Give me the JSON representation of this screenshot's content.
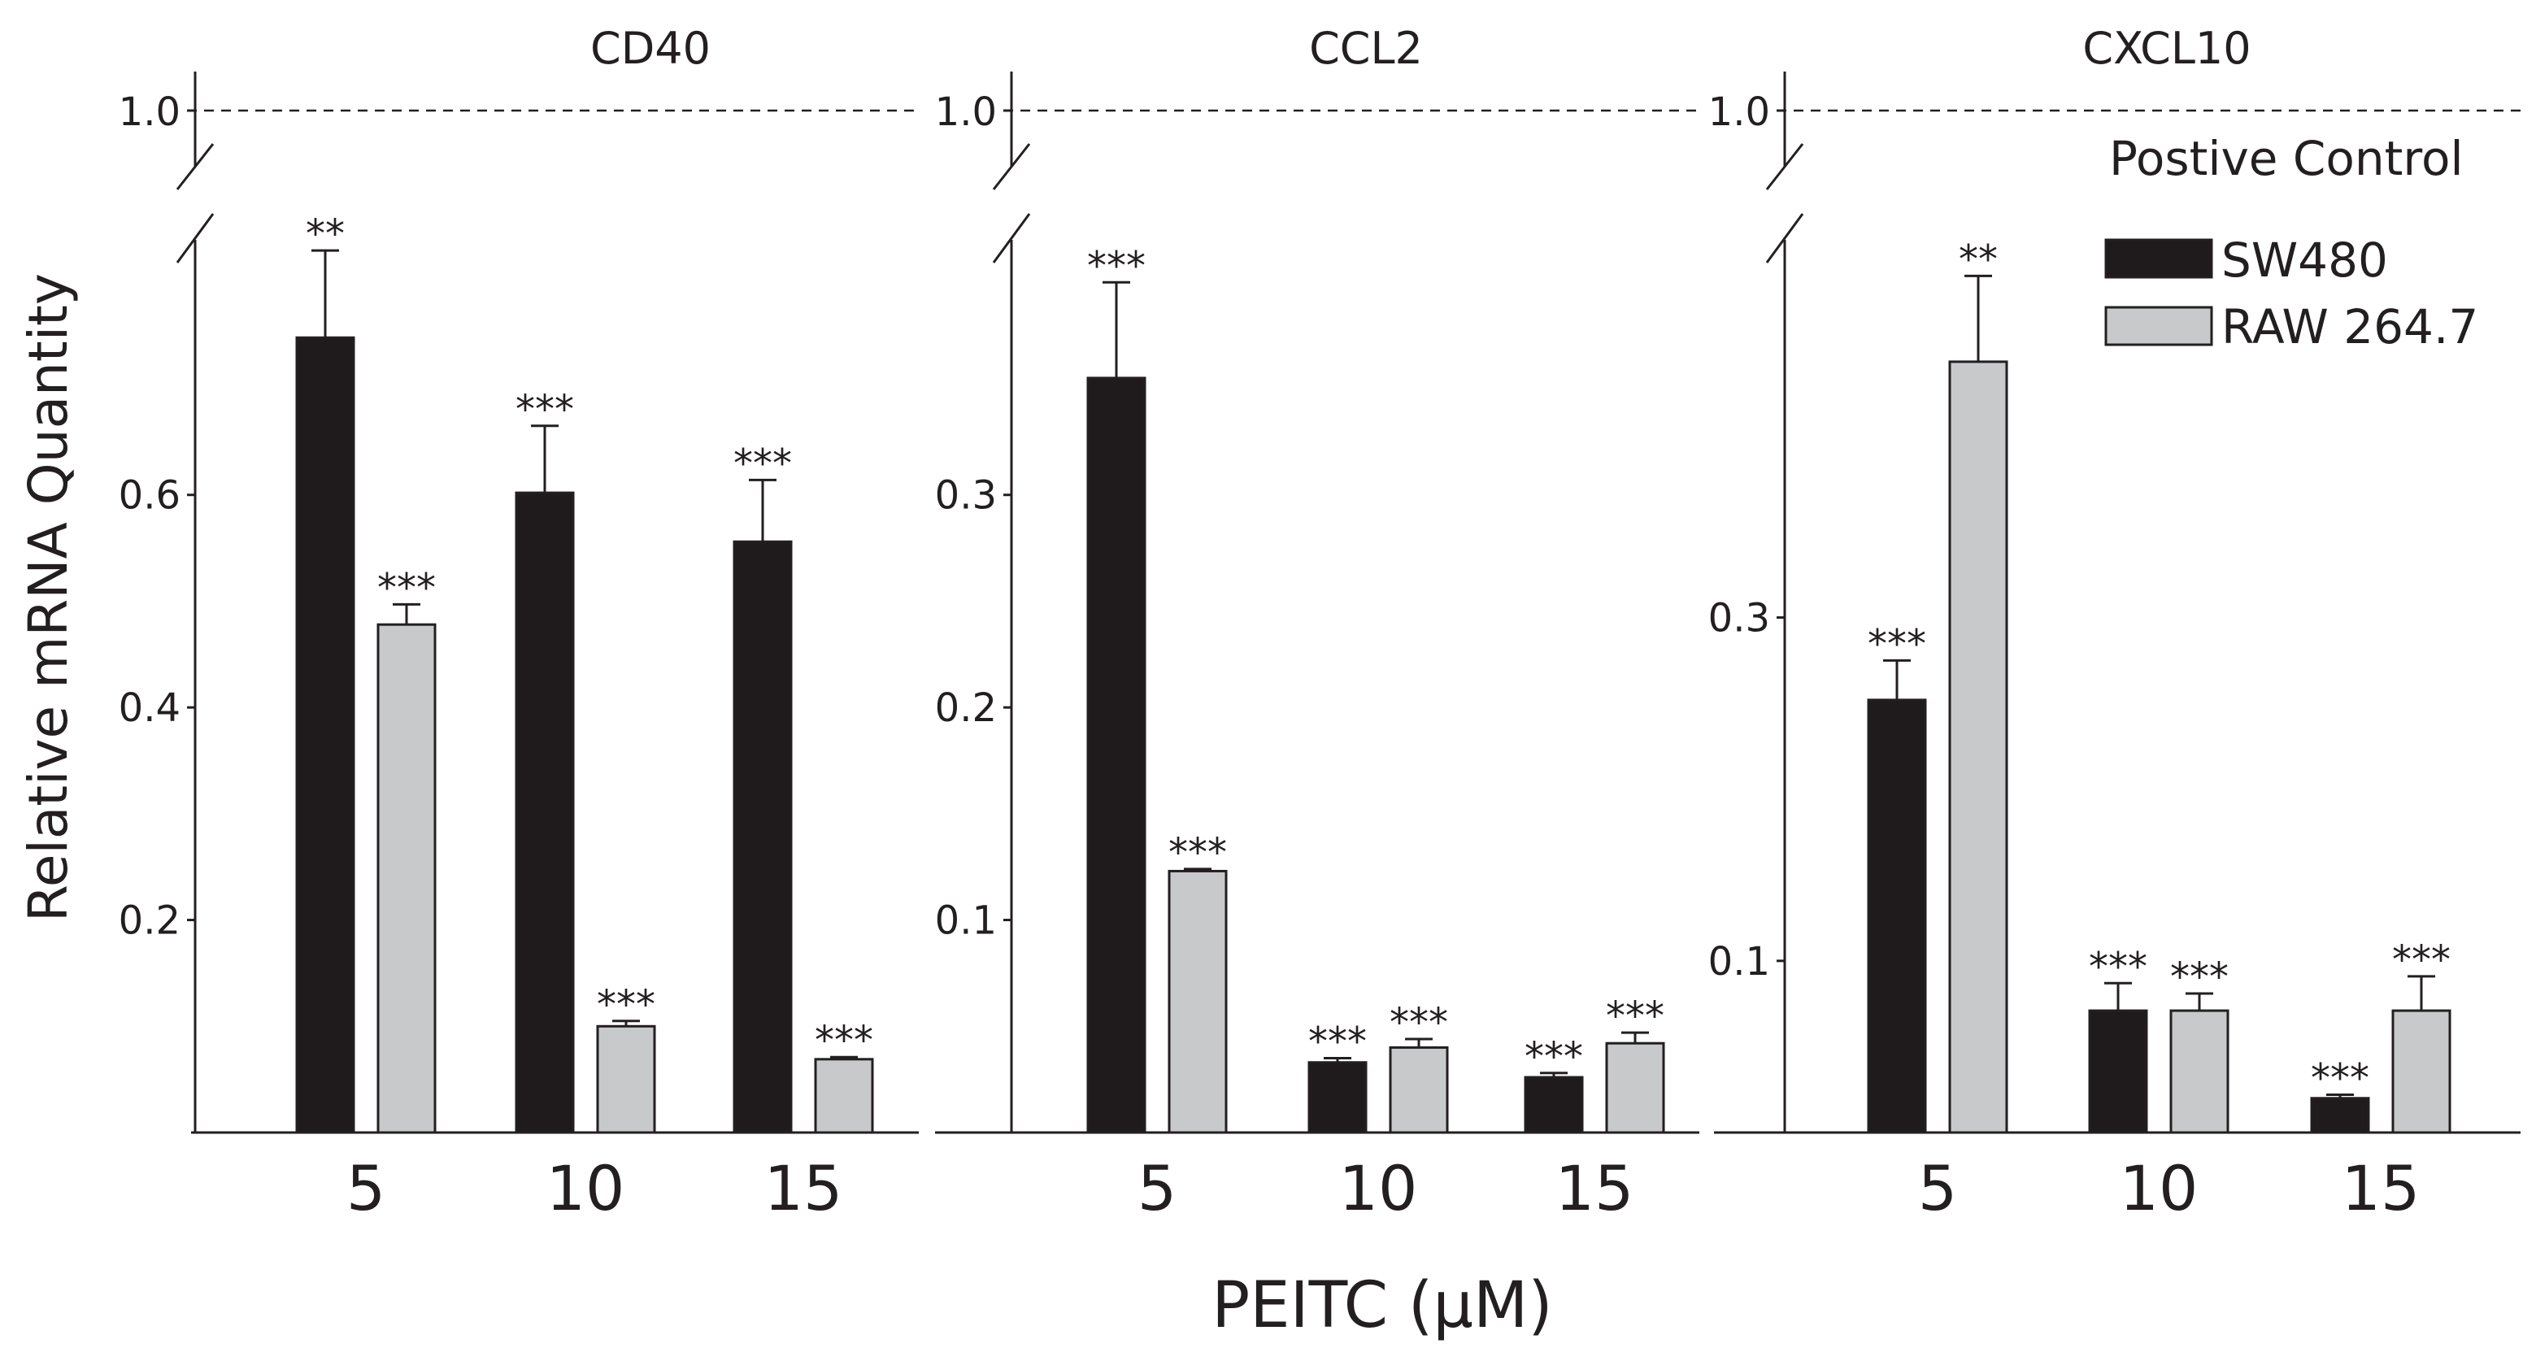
{
  "y_axis_label": "Relative mRNA Quantity",
  "x_axis_label": "PEITC (μM)",
  "legend": {
    "title": "Postive Control",
    "items": [
      {
        "label": "SW480",
        "color": "#1f1b1c"
      },
      {
        "label": "RAW 264.7",
        "color": "#c8c9cb"
      }
    ]
  },
  "colors": {
    "sw480": "#1f1b1c",
    "raw": "#c8c9cb",
    "axis": "#231f20"
  },
  "chart_data": [
    {
      "type": "bar",
      "title": "CD40",
      "categories": [
        "5",
        "10",
        "15"
      ],
      "series": [
        {
          "name": "SW480",
          "values": [
            0.748,
            0.602,
            0.556
          ],
          "errors": [
            0.082,
            0.063,
            0.058
          ],
          "significance": [
            "**",
            "***",
            "***"
          ]
        },
        {
          "name": "RAW 264.7",
          "values": [
            0.478,
            0.1,
            0.069
          ],
          "errors": [
            0.019,
            0.005,
            0.002
          ],
          "significance": [
            "***",
            "***",
            "***"
          ]
        }
      ],
      "yticks": [
        "0.2",
        "0.4",
        "0.6"
      ],
      "ytick_values": [
        0.2,
        0.4,
        0.6
      ],
      "ylim": [
        0,
        0.84
      ],
      "break_tick": "1.0",
      "positive_control": 1.0
    },
    {
      "type": "bar",
      "title": "CCL2",
      "categories": [
        "5",
        "10",
        "15"
      ],
      "series": [
        {
          "name": "SW480",
          "values": [
            0.355,
            0.033,
            0.026
          ],
          "errors": [
            0.045,
            0.002,
            0.002
          ],
          "significance": [
            "***",
            "***",
            "***"
          ]
        },
        {
          "name": "RAW 264.7",
          "values": [
            0.123,
            0.04,
            0.042
          ],
          "errors": [
            0.001,
            0.004,
            0.005
          ],
          "significance": [
            "***",
            "***",
            "***"
          ]
        }
      ],
      "yticks": [
        "0.1",
        "0.2",
        "0.3"
      ],
      "ytick_values": [
        0.1,
        0.2,
        0.3
      ],
      "ylim": [
        0,
        0.42
      ],
      "break_tick": "1.0",
      "positive_control": 1.0
    },
    {
      "type": "bar",
      "title": "CXCL10",
      "categories": [
        "5",
        "10",
        "15"
      ],
      "series": [
        {
          "name": "SW480",
          "values": [
            0.252,
            0.071,
            0.02
          ],
          "errors": [
            0.023,
            0.016,
            0.002
          ],
          "significance": [
            "***",
            "***",
            "***"
          ]
        },
        {
          "name": "RAW 264.7",
          "values": [
            0.449,
            0.071,
            0.071
          ],
          "errors": [
            0.05,
            0.01,
            0.02
          ],
          "significance": [
            "**",
            "***",
            "***"
          ]
        }
      ],
      "yticks": [
        "0.1",
        "0.3"
      ],
      "ytick_values": [
        0.1,
        0.3
      ],
      "ylim": [
        0,
        0.52
      ],
      "break_tick": "1.0",
      "positive_control": 1.0
    }
  ]
}
